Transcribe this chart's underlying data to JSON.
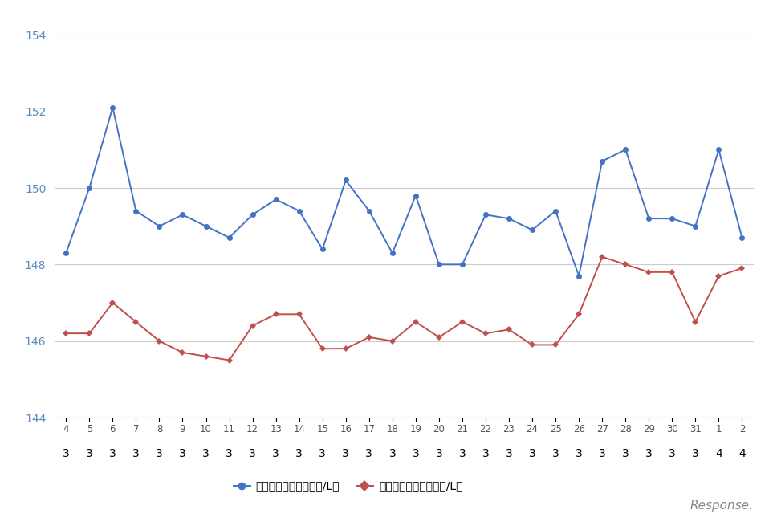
{
  "x_labels_month": [
    "3",
    "3",
    "3",
    "3",
    "3",
    "3",
    "3",
    "3",
    "3",
    "3",
    "3",
    "3",
    "3",
    "3",
    "3",
    "3",
    "3",
    "3",
    "3",
    "3",
    "3",
    "3",
    "3",
    "3",
    "3",
    "3",
    "3",
    "3",
    "4",
    "4"
  ],
  "x_labels_day": [
    "4",
    "5",
    "6",
    "7",
    "8",
    "9",
    "10",
    "11",
    "12",
    "13",
    "14",
    "15",
    "16",
    "17",
    "18",
    "19",
    "20",
    "21",
    "22",
    "23",
    "24",
    "25",
    "26",
    "27",
    "28",
    "29",
    "30",
    "31",
    "1",
    "2"
  ],
  "blue_values": [
    148.3,
    150.0,
    152.1,
    149.4,
    149.0,
    149.3,
    149.0,
    148.7,
    149.3,
    149.7,
    149.4,
    148.4,
    150.2,
    149.4,
    148.3,
    149.8,
    148.0,
    148.0,
    149.3,
    149.2,
    148.9,
    149.4,
    147.7,
    150.7,
    151.0,
    149.2,
    149.2,
    149.0,
    151.0,
    148.7
  ],
  "red_values": [
    146.2,
    146.2,
    147.0,
    146.5,
    146.0,
    145.7,
    145.6,
    145.5,
    146.4,
    146.7,
    146.7,
    145.8,
    145.8,
    146.1,
    146.0,
    146.5,
    146.1,
    146.5,
    146.2,
    146.3,
    145.9,
    145.9,
    146.7,
    148.2,
    148.0,
    147.8,
    147.8,
    146.5,
    147.7,
    147.9
  ],
  "blue_color": "#4472c4",
  "red_color": "#c0504d",
  "ylim_min": 144,
  "ylim_max": 154.5,
  "yticks": [
    144,
    146,
    148,
    150,
    152,
    154
  ],
  "legend_blue": "ハイオク看板価格（円/L）",
  "legend_red": "ハイオク実売価格（円/L）",
  "background_color": "#ffffff",
  "grid_color": "#cccccc",
  "tick_color": "#5a8abf",
  "axis_line_color": "#aaaaaa"
}
